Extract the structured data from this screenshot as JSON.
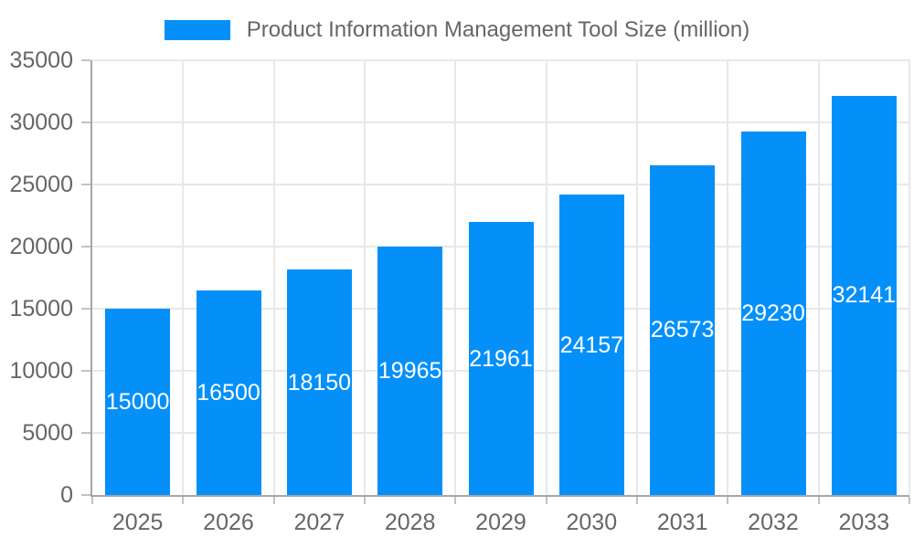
{
  "chart_data": {
    "type": "bar",
    "title": "Product Information Management Tool Size (million)",
    "categories": [
      "2025",
      "2026",
      "2027",
      "2028",
      "2029",
      "2030",
      "2031",
      "2032",
      "2033"
    ],
    "values": [
      15000,
      16500,
      18150,
      19965,
      21961,
      24157,
      26573,
      29230,
      32141
    ],
    "value_labels": [
      "15000",
      "16500",
      "18150",
      "19965",
      "21961",
      "24157",
      "26573",
      "29230",
      "32141"
    ],
    "bar_color": "#0590F9",
    "value_label_color": "#FFFFFF",
    "axis_text_color": "#666666",
    "xlabel": "",
    "ylabel": "",
    "ylim": [
      0,
      35000
    ],
    "yticks": [
      0,
      5000,
      10000,
      15000,
      20000,
      25000,
      30000,
      35000
    ],
    "ytick_labels": [
      "0",
      "5000",
      "10000",
      "15000",
      "20000",
      "25000",
      "30000",
      "35000"
    ],
    "grid": true,
    "legend_position": "top"
  }
}
